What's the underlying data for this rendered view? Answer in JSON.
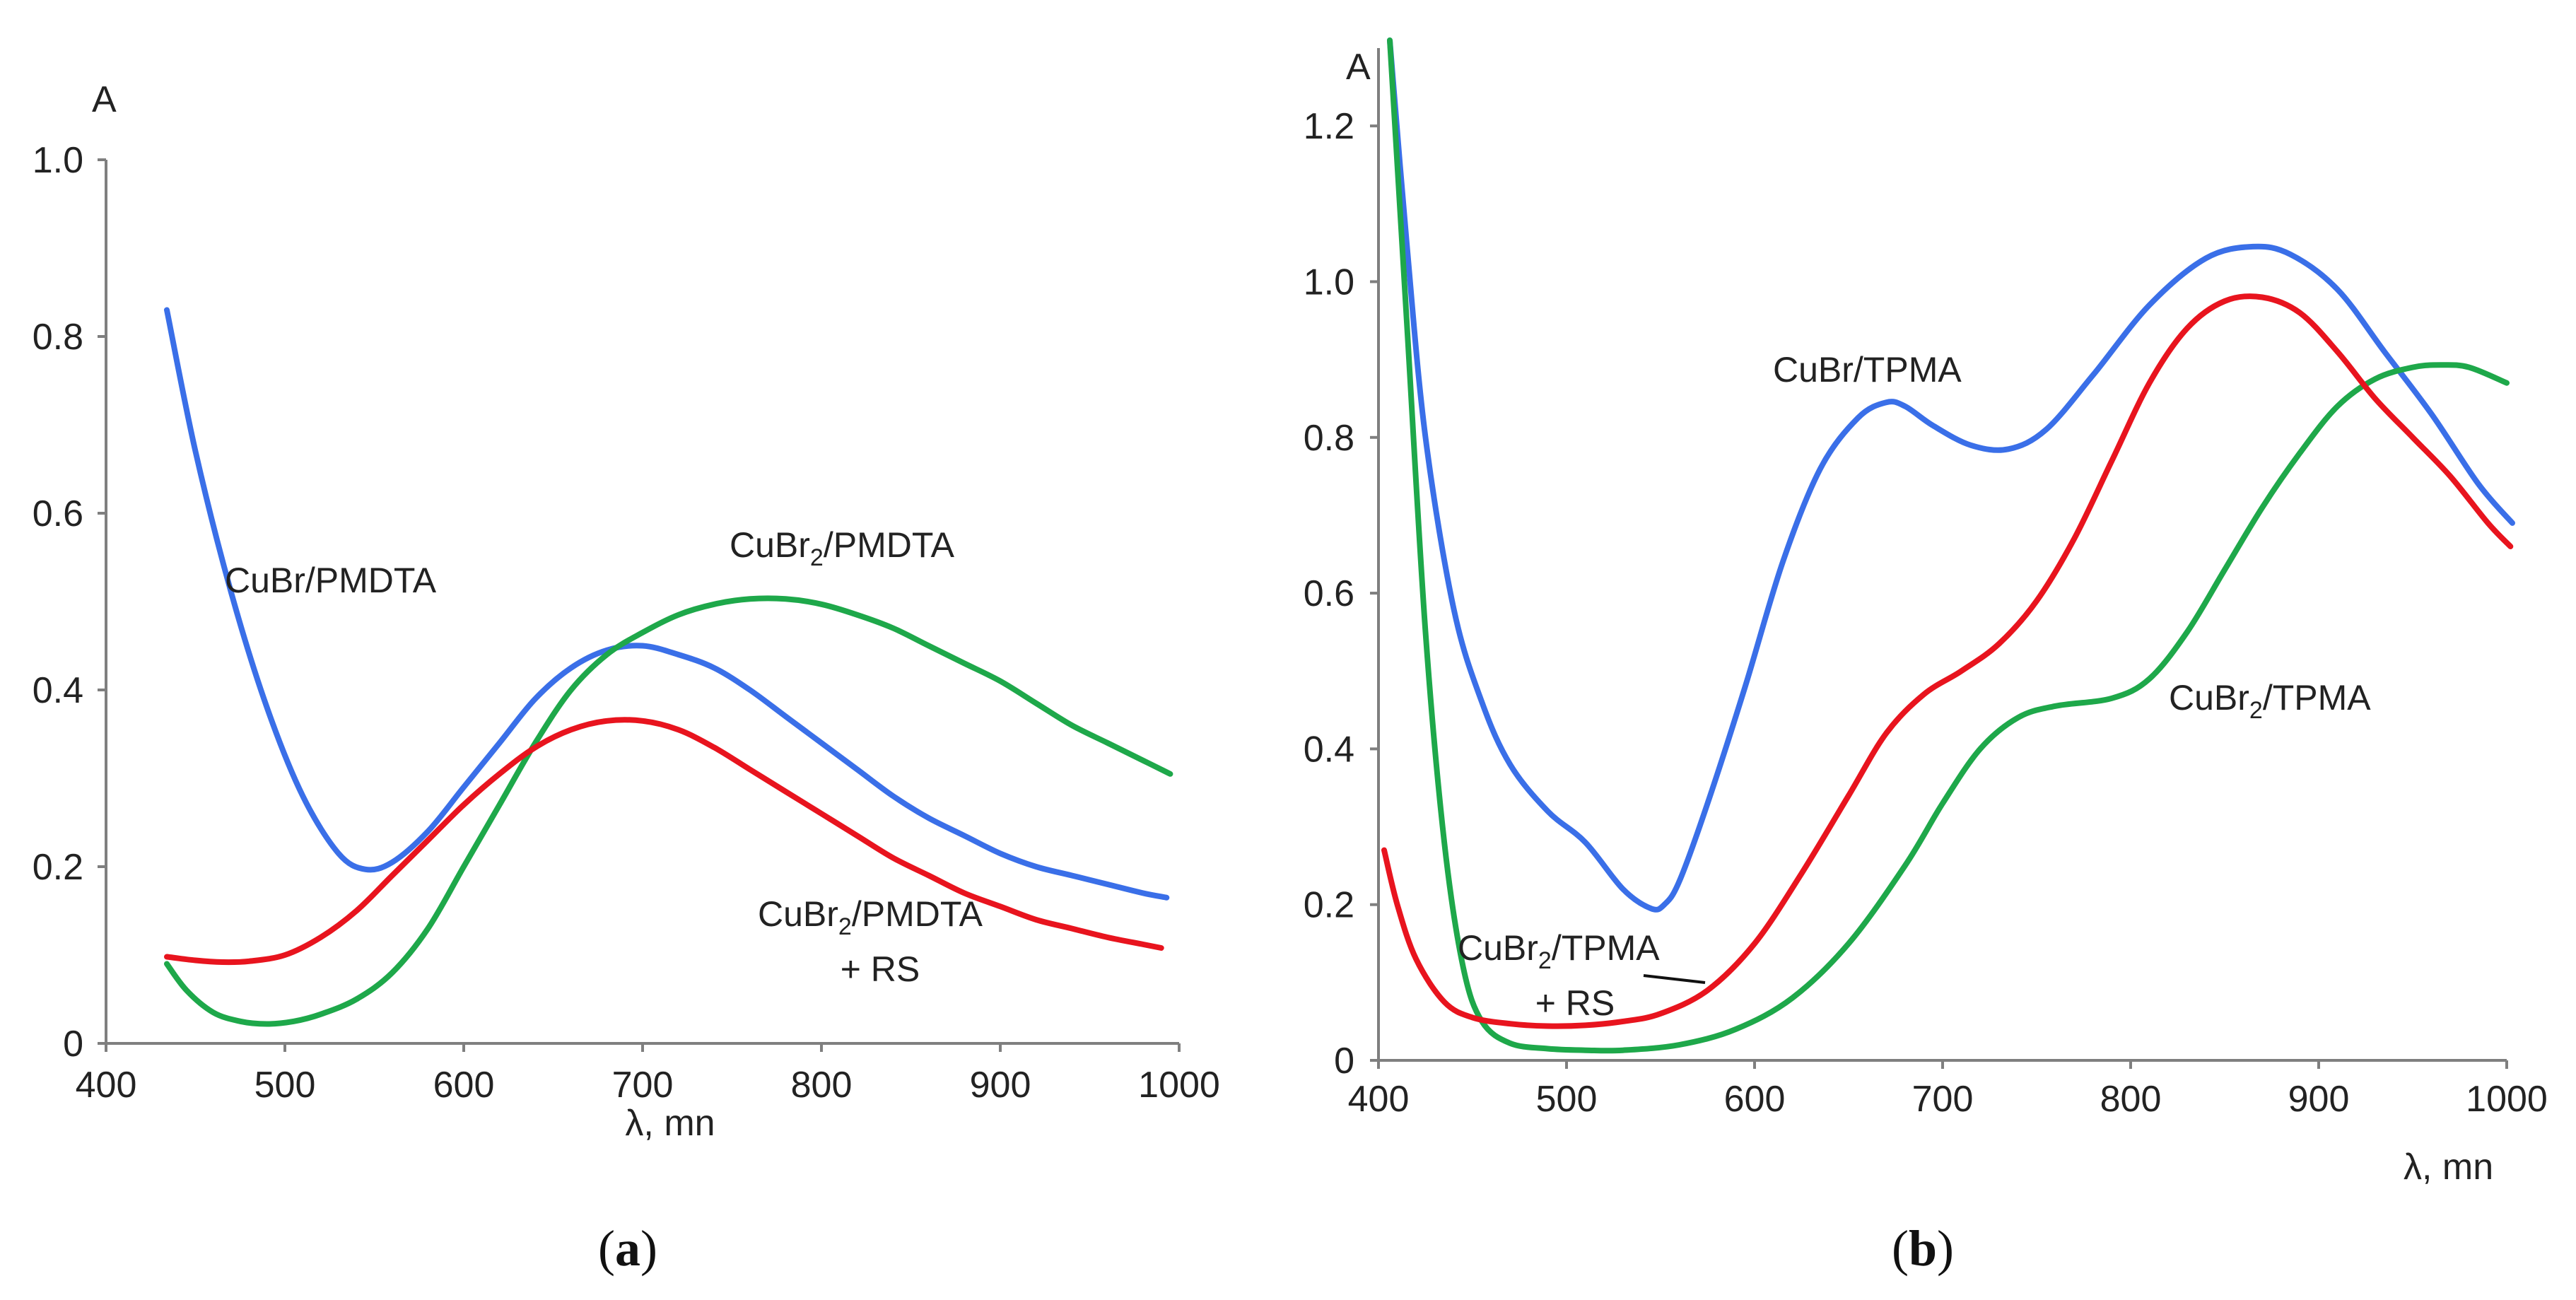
{
  "chart_data": [
    {
      "id": "a",
      "type": "line",
      "panel_label": "a",
      "xlabel": "λ, mn",
      "ylabel": "A",
      "xlim": [
        400,
        1000
      ],
      "ylim": [
        0,
        1.0
      ],
      "xticks": [
        400,
        500,
        600,
        700,
        800,
        900,
        1000
      ],
      "yticks": [
        0,
        0.2,
        0.4,
        0.6,
        0.8,
        1.0
      ],
      "ytick_labels": [
        "0",
        "0.2",
        "0.4",
        "0.6",
        "0.8",
        "1.0"
      ],
      "xtick_labels": [
        "400",
        "500",
        "600",
        "700",
        "800",
        "900",
        "1000"
      ],
      "series": [
        {
          "name": "CuBr/PMDTA",
          "color": "#3a6fe8",
          "x": [
            434,
            450,
            470,
            490,
            510,
            530,
            545,
            560,
            580,
            600,
            620,
            640,
            660,
            680,
            700,
            720,
            740,
            760,
            780,
            800,
            820,
            840,
            860,
            880,
            900,
            920,
            940,
            960,
            980,
            993
          ],
          "y": [
            0.83,
            0.67,
            0.51,
            0.38,
            0.28,
            0.215,
            0.197,
            0.205,
            0.24,
            0.29,
            0.34,
            0.39,
            0.425,
            0.445,
            0.45,
            0.44,
            0.425,
            0.4,
            0.37,
            0.34,
            0.31,
            0.28,
            0.255,
            0.235,
            0.215,
            0.2,
            0.19,
            0.18,
            0.17,
            0.165
          ]
        },
        {
          "name": "CuBr2/PMDTA",
          "color": "#1ea84a",
          "x": [
            434,
            445,
            460,
            475,
            490,
            505,
            520,
            540,
            560,
            580,
            600,
            620,
            640,
            660,
            680,
            700,
            720,
            740,
            760,
            780,
            800,
            820,
            840,
            860,
            880,
            900,
            920,
            940,
            960,
            980,
            995
          ],
          "y": [
            0.09,
            0.06,
            0.035,
            0.025,
            0.022,
            0.025,
            0.033,
            0.05,
            0.08,
            0.13,
            0.2,
            0.27,
            0.34,
            0.4,
            0.44,
            0.465,
            0.485,
            0.497,
            0.503,
            0.503,
            0.497,
            0.485,
            0.47,
            0.45,
            0.43,
            0.41,
            0.385,
            0.36,
            0.34,
            0.32,
            0.305
          ]
        },
        {
          "name": "CuBr2/PMDTA + RS",
          "color": "#e8141e",
          "x": [
            434,
            450,
            465,
            480,
            500,
            520,
            540,
            560,
            580,
            600,
            620,
            640,
            660,
            680,
            700,
            720,
            740,
            760,
            780,
            800,
            820,
            840,
            860,
            880,
            900,
            920,
            940,
            960,
            980,
            990
          ],
          "y": [
            0.098,
            0.094,
            0.092,
            0.093,
            0.1,
            0.12,
            0.15,
            0.19,
            0.23,
            0.27,
            0.305,
            0.335,
            0.355,
            0.365,
            0.365,
            0.355,
            0.335,
            0.31,
            0.285,
            0.26,
            0.235,
            0.21,
            0.19,
            0.17,
            0.155,
            0.14,
            0.13,
            0.12,
            0.112,
            0.108
          ]
        }
      ],
      "labels": {
        "blue": "CuBr/PMDTA",
        "green_main": "CuBr",
        "green_sub": "2",
        "green_rest": "/PMDTA",
        "red_main": "CuBr",
        "red_sub": "2",
        "red_rest": "/PMDTA",
        "red_line2": "+ RS"
      }
    },
    {
      "id": "b",
      "type": "line",
      "panel_label": "b",
      "xlabel": "λ, mn",
      "ylabel": "A",
      "xlim": [
        400,
        1000
      ],
      "ylim": [
        0,
        1.3
      ],
      "xticks": [
        400,
        500,
        600,
        700,
        800,
        900,
        1000
      ],
      "yticks": [
        0,
        0.2,
        0.4,
        0.6,
        0.8,
        1.0,
        1.2
      ],
      "ytick_labels": [
        "0",
        "0.2",
        "0.4",
        "0.6",
        "0.8",
        "1.0",
        "1.2"
      ],
      "xtick_labels": [
        "400",
        "500",
        "600",
        "700",
        "800",
        "900",
        "1000"
      ],
      "series": [
        {
          "name": "CuBr/TPMA",
          "color": "#3a6fe8",
          "x": [
            406,
            415,
            425,
            440,
            455,
            470,
            490,
            510,
            530,
            545,
            552,
            560,
            575,
            595,
            615,
            635,
            655,
            670,
            680,
            695,
            715,
            735,
            755,
            780,
            810,
            840,
            865,
            885,
            910,
            935,
            960,
            985,
            1003
          ],
          "y": [
            1.31,
            1.05,
            0.8,
            0.58,
            0.46,
            0.38,
            0.32,
            0.28,
            0.22,
            0.195,
            0.2,
            0.23,
            0.33,
            0.48,
            0.64,
            0.76,
            0.825,
            0.845,
            0.84,
            0.815,
            0.79,
            0.785,
            0.81,
            0.88,
            0.97,
            1.03,
            1.045,
            1.035,
            0.99,
            0.91,
            0.83,
            0.74,
            0.69
          ]
        },
        {
          "name": "CuBr2/TPMA",
          "color": "#1ea84a",
          "x": [
            406,
            415,
            425,
            435,
            445,
            455,
            470,
            490,
            510,
            530,
            560,
            590,
            620,
            650,
            680,
            700,
            720,
            740,
            760,
            790,
            810,
            830,
            850,
            870,
            890,
            910,
            930,
            950,
            965,
            980,
            1000
          ],
          "y": [
            1.31,
            0.95,
            0.55,
            0.28,
            0.12,
            0.05,
            0.022,
            0.015,
            0.013,
            0.013,
            0.02,
            0.04,
            0.08,
            0.15,
            0.25,
            0.33,
            0.4,
            0.44,
            0.455,
            0.465,
            0.49,
            0.55,
            0.63,
            0.71,
            0.78,
            0.84,
            0.875,
            0.89,
            0.893,
            0.89,
            0.87
          ]
        },
        {
          "name": "CuBr2/TPMA + RS",
          "color": "#e8141e",
          "x": [
            403,
            410,
            420,
            435,
            450,
            470,
            490,
            510,
            530,
            550,
            575,
            600,
            625,
            650,
            670,
            690,
            710,
            730,
            750,
            770,
            790,
            810,
            830,
            850,
            870,
            890,
            910,
            930,
            950,
            970,
            990,
            1002
          ],
          "y": [
            0.27,
            0.2,
            0.13,
            0.075,
            0.055,
            0.047,
            0.044,
            0.045,
            0.05,
            0.06,
            0.09,
            0.15,
            0.24,
            0.34,
            0.42,
            0.47,
            0.5,
            0.535,
            0.59,
            0.67,
            0.77,
            0.87,
            0.94,
            0.975,
            0.98,
            0.96,
            0.91,
            0.85,
            0.8,
            0.75,
            0.69,
            0.66
          ]
        }
      ],
      "labels": {
        "blue": "CuBr/TPMA",
        "green_main": "CuBr",
        "green_sub": "2",
        "green_rest": "/TPMA",
        "red_main": "CuBr",
        "red_sub": "2",
        "red_rest": "/TPMA",
        "red_line2": "+ RS"
      }
    }
  ]
}
